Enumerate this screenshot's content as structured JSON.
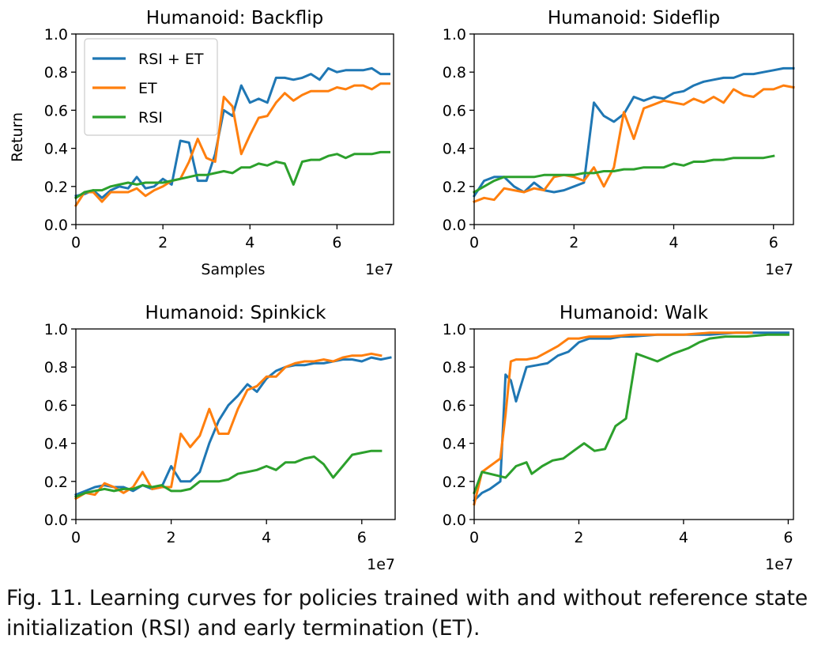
{
  "caption": "Fig. 11.  Learning curves for policies trained with and without reference state initialization (RSI) and early termination (ET).",
  "colors": {
    "rsi_et": "#1f77b4",
    "et": "#ff7f0e",
    "rsi": "#2ca02c"
  },
  "legend": [
    "RSI + ET",
    "ET",
    "RSI"
  ],
  "chart_data": [
    {
      "type": "line",
      "title": "Humanoid: Backflip",
      "xlabel": "Samples",
      "ylabel": "Return",
      "x_scale_label": "1e7",
      "xlim": [
        0,
        7.3
      ],
      "ylim": [
        0,
        1.0
      ],
      "xticks": [
        "0",
        "2",
        "4",
        "6"
      ],
      "yticks": [
        "0.0",
        "0.2",
        "0.4",
        "0.6",
        "0.8",
        "1.0"
      ],
      "legend_position": "upper-left",
      "series": [
        {
          "name": "RSI + ET",
          "x": [
            0,
            0.2,
            0.4,
            0.6,
            0.8,
            1.0,
            1.2,
            1.4,
            1.6,
            1.8,
            2.0,
            2.2,
            2.4,
            2.6,
            2.8,
            3.0,
            3.2,
            3.4,
            3.6,
            3.8,
            4.0,
            4.2,
            4.4,
            4.6,
            4.8,
            5.0,
            5.2,
            5.4,
            5.6,
            5.8,
            6.0,
            6.2,
            6.4,
            6.6,
            6.8,
            7.0,
            7.2
          ],
          "y": [
            0.15,
            0.16,
            0.18,
            0.14,
            0.18,
            0.2,
            0.19,
            0.25,
            0.19,
            0.2,
            0.24,
            0.21,
            0.44,
            0.43,
            0.23,
            0.23,
            0.37,
            0.6,
            0.57,
            0.73,
            0.64,
            0.66,
            0.64,
            0.77,
            0.77,
            0.76,
            0.77,
            0.79,
            0.76,
            0.82,
            0.8,
            0.81,
            0.81,
            0.81,
            0.82,
            0.79,
            0.79
          ]
        },
        {
          "name": "ET",
          "x": [
            0,
            0.2,
            0.4,
            0.6,
            0.8,
            1.0,
            1.2,
            1.4,
            1.6,
            1.8,
            2.0,
            2.2,
            2.4,
            2.6,
            2.8,
            3.0,
            3.2,
            3.4,
            3.6,
            3.8,
            4.0,
            4.2,
            4.4,
            4.6,
            4.8,
            5.0,
            5.2,
            5.4,
            5.6,
            5.8,
            6.0,
            6.2,
            6.4,
            6.6,
            6.8,
            7.0,
            7.2
          ],
          "y": [
            0.1,
            0.17,
            0.17,
            0.12,
            0.17,
            0.17,
            0.17,
            0.19,
            0.15,
            0.18,
            0.2,
            0.23,
            0.24,
            0.33,
            0.45,
            0.35,
            0.33,
            0.67,
            0.62,
            0.37,
            0.47,
            0.56,
            0.57,
            0.64,
            0.69,
            0.65,
            0.68,
            0.7,
            0.7,
            0.7,
            0.72,
            0.71,
            0.73,
            0.73,
            0.71,
            0.74,
            0.74
          ]
        },
        {
          "name": "RSI",
          "x": [
            0,
            0.2,
            0.4,
            0.6,
            0.8,
            1.0,
            1.2,
            1.4,
            1.6,
            1.8,
            2.0,
            2.2,
            2.4,
            2.6,
            2.8,
            3.0,
            3.2,
            3.4,
            3.6,
            3.8,
            4.0,
            4.2,
            4.4,
            4.6,
            4.8,
            5.0,
            5.2,
            5.4,
            5.6,
            5.8,
            6.0,
            6.2,
            6.4,
            6.6,
            6.8,
            7.0,
            7.2
          ],
          "y": [
            0.14,
            0.17,
            0.18,
            0.18,
            0.2,
            0.21,
            0.22,
            0.21,
            0.22,
            0.22,
            0.22,
            0.23,
            0.24,
            0.25,
            0.26,
            0.26,
            0.27,
            0.28,
            0.27,
            0.3,
            0.3,
            0.32,
            0.31,
            0.33,
            0.32,
            0.21,
            0.33,
            0.34,
            0.34,
            0.36,
            0.37,
            0.35,
            0.37,
            0.37,
            0.37,
            0.38,
            0.38
          ]
        }
      ]
    },
    {
      "type": "line",
      "title": "Humanoid: Sideflip",
      "xlabel": "",
      "ylabel": "",
      "x_scale_label": "1e7",
      "xlim": [
        0,
        6.4
      ],
      "ylim": [
        0,
        1.0
      ],
      "xticks": [
        "0",
        "2",
        "4",
        "6"
      ],
      "yticks": [
        "0.0",
        "0.2",
        "0.4",
        "0.6",
        "0.8",
        "1.0"
      ],
      "series": [
        {
          "name": "RSI + ET",
          "x": [
            0,
            0.2,
            0.4,
            0.6,
            0.8,
            1.0,
            1.2,
            1.4,
            1.6,
            1.8,
            2.0,
            2.2,
            2.4,
            2.6,
            2.8,
            3.0,
            3.2,
            3.4,
            3.6,
            3.8,
            4.0,
            4.2,
            4.4,
            4.6,
            4.8,
            5.0,
            5.2,
            5.4,
            5.6,
            5.8,
            6.0,
            6.2,
            6.4
          ],
          "y": [
            0.15,
            0.23,
            0.25,
            0.25,
            0.2,
            0.17,
            0.22,
            0.18,
            0.17,
            0.18,
            0.2,
            0.22,
            0.64,
            0.57,
            0.54,
            0.58,
            0.67,
            0.65,
            0.67,
            0.66,
            0.69,
            0.7,
            0.73,
            0.75,
            0.76,
            0.77,
            0.77,
            0.79,
            0.79,
            0.8,
            0.81,
            0.82,
            0.82
          ]
        },
        {
          "name": "ET",
          "x": [
            0,
            0.2,
            0.4,
            0.6,
            0.8,
            1.0,
            1.2,
            1.4,
            1.6,
            1.8,
            2.0,
            2.2,
            2.4,
            2.6,
            2.8,
            3.0,
            3.2,
            3.4,
            3.6,
            3.8,
            4.0,
            4.2,
            4.4,
            4.6,
            4.8,
            5.0,
            5.2,
            5.4,
            5.6,
            5.8,
            6.0,
            6.2,
            6.4
          ],
          "y": [
            0.12,
            0.14,
            0.13,
            0.19,
            0.18,
            0.17,
            0.19,
            0.18,
            0.25,
            0.26,
            0.25,
            0.23,
            0.3,
            0.2,
            0.3,
            0.59,
            0.45,
            0.61,
            0.63,
            0.65,
            0.64,
            0.63,
            0.66,
            0.64,
            0.67,
            0.64,
            0.71,
            0.68,
            0.67,
            0.71,
            0.71,
            0.73,
            0.72
          ]
        },
        {
          "name": "RSI",
          "x": [
            0,
            0.2,
            0.4,
            0.6,
            0.8,
            1.0,
            1.2,
            1.4,
            1.6,
            1.8,
            2.0,
            2.2,
            2.4,
            2.6,
            2.8,
            3.0,
            3.2,
            3.4,
            3.6,
            3.8,
            4.0,
            4.2,
            4.4,
            4.6,
            4.8,
            5.0,
            5.2,
            5.4,
            5.6,
            5.8,
            6.0
          ],
          "y": [
            0.17,
            0.2,
            0.23,
            0.25,
            0.25,
            0.25,
            0.25,
            0.26,
            0.26,
            0.26,
            0.26,
            0.27,
            0.27,
            0.28,
            0.28,
            0.29,
            0.29,
            0.3,
            0.3,
            0.3,
            0.32,
            0.31,
            0.33,
            0.33,
            0.34,
            0.34,
            0.35,
            0.35,
            0.35,
            0.35,
            0.36
          ]
        }
      ]
    },
    {
      "type": "line",
      "title": "Humanoid: Spinkick",
      "xlabel": "",
      "ylabel": "",
      "x_scale_label": "1e7",
      "xlim": [
        0,
        6.7
      ],
      "ylim": [
        0,
        1.0
      ],
      "xticks": [
        "0",
        "2",
        "4",
        "6"
      ],
      "yticks": [
        "0.0",
        "0.2",
        "0.4",
        "0.6",
        "0.8",
        "1.0"
      ],
      "series": [
        {
          "name": "RSI + ET",
          "x": [
            0,
            0.2,
            0.4,
            0.6,
            0.8,
            1.0,
            1.2,
            1.4,
            1.6,
            1.8,
            2.0,
            2.2,
            2.4,
            2.6,
            2.8,
            3.0,
            3.2,
            3.4,
            3.6,
            3.8,
            4.0,
            4.2,
            4.4,
            4.6,
            4.8,
            5.0,
            5.2,
            5.4,
            5.6,
            5.8,
            6.0,
            6.2,
            6.4,
            6.6
          ],
          "y": [
            0.13,
            0.15,
            0.17,
            0.18,
            0.17,
            0.17,
            0.15,
            0.18,
            0.16,
            0.17,
            0.28,
            0.2,
            0.2,
            0.25,
            0.4,
            0.52,
            0.6,
            0.65,
            0.71,
            0.67,
            0.74,
            0.78,
            0.8,
            0.81,
            0.81,
            0.82,
            0.82,
            0.83,
            0.84,
            0.84,
            0.83,
            0.85,
            0.84,
            0.85
          ]
        },
        {
          "name": "ET",
          "x": [
            0,
            0.2,
            0.4,
            0.6,
            0.8,
            1.0,
            1.2,
            1.4,
            1.6,
            1.8,
            2.0,
            2.2,
            2.4,
            2.6,
            2.8,
            3.0,
            3.2,
            3.4,
            3.6,
            3.8,
            4.0,
            4.2,
            4.4,
            4.6,
            4.8,
            5.0,
            5.2,
            5.4,
            5.6,
            5.8,
            6.0,
            6.2,
            6.4
          ],
          "y": [
            0.11,
            0.14,
            0.13,
            0.19,
            0.17,
            0.14,
            0.17,
            0.25,
            0.16,
            0.17,
            0.17,
            0.45,
            0.38,
            0.44,
            0.58,
            0.45,
            0.45,
            0.58,
            0.68,
            0.7,
            0.75,
            0.75,
            0.8,
            0.82,
            0.83,
            0.83,
            0.84,
            0.83,
            0.85,
            0.86,
            0.86,
            0.87,
            0.86
          ]
        },
        {
          "name": "RSI",
          "x": [
            0,
            0.2,
            0.4,
            0.6,
            0.8,
            1.0,
            1.2,
            1.4,
            1.6,
            1.8,
            2.0,
            2.2,
            2.4,
            2.6,
            2.8,
            3.0,
            3.2,
            3.4,
            3.6,
            3.8,
            4.0,
            4.2,
            4.4,
            4.6,
            4.8,
            5.0,
            5.2,
            5.4,
            5.6,
            5.8,
            6.0,
            6.2,
            6.4
          ],
          "y": [
            0.12,
            0.14,
            0.15,
            0.16,
            0.15,
            0.16,
            0.16,
            0.18,
            0.17,
            0.18,
            0.15,
            0.15,
            0.16,
            0.2,
            0.2,
            0.2,
            0.21,
            0.24,
            0.25,
            0.26,
            0.28,
            0.26,
            0.3,
            0.3,
            0.32,
            0.33,
            0.29,
            0.22,
            0.28,
            0.34,
            0.35,
            0.36,
            0.36
          ]
        }
      ]
    },
    {
      "type": "line",
      "title": "Humanoid: Walk",
      "xlabel": "",
      "ylabel": "",
      "x_scale_label": "1e7",
      "xlim": [
        0,
        6.1
      ],
      "ylim": [
        0,
        1.0
      ],
      "xticks": [
        "0",
        "2",
        "4",
        "6"
      ],
      "yticks": [
        "0.0",
        "0.2",
        "0.4",
        "0.6",
        "0.8",
        "1.0"
      ],
      "series": [
        {
          "name": "RSI + ET",
          "x": [
            0,
            0.15,
            0.3,
            0.5,
            0.6,
            0.7,
            0.8,
            1.0,
            1.2,
            1.4,
            1.6,
            1.8,
            2.0,
            2.2,
            2.4,
            2.6,
            2.8,
            3.0,
            3.5,
            4.0,
            4.5,
            5.0,
            5.5,
            6.0
          ],
          "y": [
            0.1,
            0.14,
            0.16,
            0.2,
            0.76,
            0.73,
            0.62,
            0.8,
            0.81,
            0.82,
            0.86,
            0.88,
            0.93,
            0.95,
            0.95,
            0.95,
            0.96,
            0.96,
            0.97,
            0.97,
            0.97,
            0.98,
            0.98,
            0.98
          ]
        },
        {
          "name": "ET",
          "x": [
            0,
            0.15,
            0.3,
            0.4,
            0.5,
            0.6,
            0.7,
            0.8,
            1.0,
            1.2,
            1.4,
            1.6,
            1.8,
            2.0,
            2.2,
            2.4,
            2.6,
            3.0,
            3.5,
            4.0,
            4.5,
            5.0,
            5.3
          ],
          "y": [
            0.08,
            0.25,
            0.28,
            0.3,
            0.32,
            0.55,
            0.83,
            0.84,
            0.84,
            0.85,
            0.88,
            0.91,
            0.95,
            0.95,
            0.96,
            0.96,
            0.96,
            0.97,
            0.97,
            0.97,
            0.98,
            0.98,
            0.98
          ]
        },
        {
          "name": "RSI",
          "x": [
            0,
            0.15,
            0.3,
            0.45,
            0.6,
            0.8,
            1.0,
            1.1,
            1.3,
            1.5,
            1.7,
            1.9,
            2.1,
            2.3,
            2.5,
            2.7,
            2.9,
            3.0,
            3.1,
            3.3,
            3.5,
            3.8,
            4.1,
            4.3,
            4.5,
            4.8,
            5.2,
            5.6,
            6.0
          ],
          "y": [
            0.14,
            0.25,
            0.24,
            0.23,
            0.22,
            0.28,
            0.3,
            0.24,
            0.28,
            0.31,
            0.32,
            0.36,
            0.4,
            0.36,
            0.37,
            0.49,
            0.53,
            0.7,
            0.87,
            0.85,
            0.83,
            0.87,
            0.9,
            0.93,
            0.95,
            0.96,
            0.96,
            0.97,
            0.97
          ]
        }
      ]
    }
  ]
}
